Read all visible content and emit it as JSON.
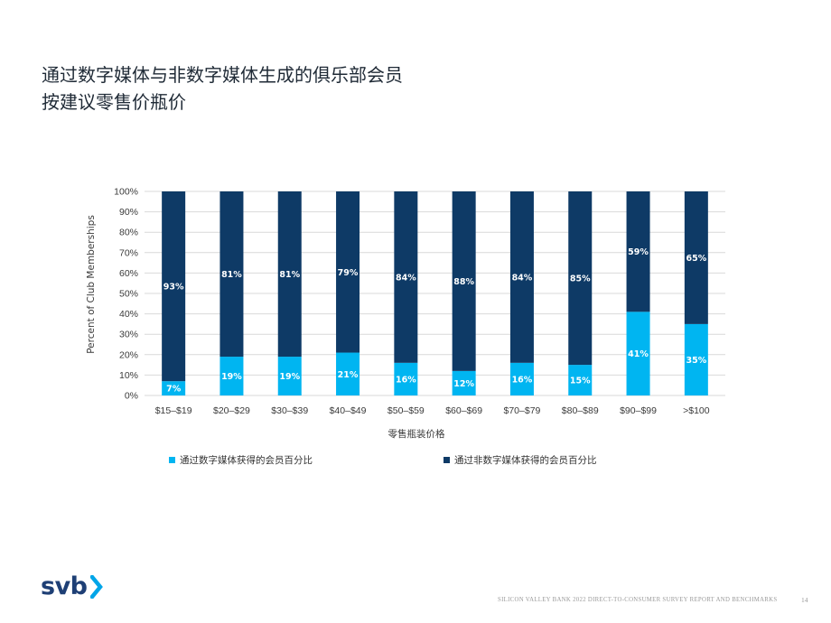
{
  "title": {
    "line1": "通过数字媒体与非数字媒体生成的俱乐部会员",
    "line2": "按建议零售价瓶价"
  },
  "chart_data": {
    "type": "bar",
    "stacked": true,
    "categories": [
      "$15–$19",
      "$20–$29",
      "$30–$39",
      "$40–$49",
      "$50–$59",
      "$60–$69",
      "$70–$79",
      "$80–$89",
      "$90–$99",
      ">$100"
    ],
    "series": [
      {
        "name": "通过数字媒体获得的会员百分比",
        "color": "#00b5f1",
        "values": [
          7,
          19,
          19,
          21,
          16,
          12,
          16,
          15,
          41,
          35
        ]
      },
      {
        "name": "通过非数字媒体获得的会员百分比",
        "color": "#0e3a66",
        "values": [
          93,
          81,
          81,
          79,
          84,
          88,
          84,
          85,
          59,
          65
        ]
      }
    ],
    "data_labels": {
      "digital": [
        "7%",
        "19%",
        "19%",
        "21%",
        "16%",
        "12%",
        "16%",
        "15%",
        "41%",
        "35%"
      ],
      "non_digital": [
        "93%",
        "81%",
        "81%",
        "79%",
        "84%",
        "88%",
        "84%",
        "85%",
        "59%",
        "65%"
      ]
    },
    "y_ticks": [
      "0%",
      "10%",
      "20%",
      "30%",
      "40%",
      "50%",
      "60%",
      "70%",
      "80%",
      "90%",
      "100%"
    ],
    "xlabel": "零售瓶装价格",
    "ylabel": "Percent of Club Memberships",
    "ylim": [
      0,
      100
    ],
    "grid": "horizontal",
    "legend_position": "bottom"
  },
  "legend": {
    "digital_label": "通过数字媒体获得的会员百分比",
    "non_digital_label": "通过非数字媒体获得的会员百分比"
  },
  "colors": {
    "digital": "#00b5f1",
    "non_digital": "#0e3a66",
    "brand": "#1e3f75",
    "chevron": "#00a5e8"
  },
  "logo": {
    "text": "svb",
    "icon": "chevron-right-icon"
  },
  "footer": {
    "text": "SILICON VALLEY BANK 2022 DIRECT-TO-CONSUMER SURVEY REPORT AND BENCHMARKS",
    "page": "14"
  }
}
